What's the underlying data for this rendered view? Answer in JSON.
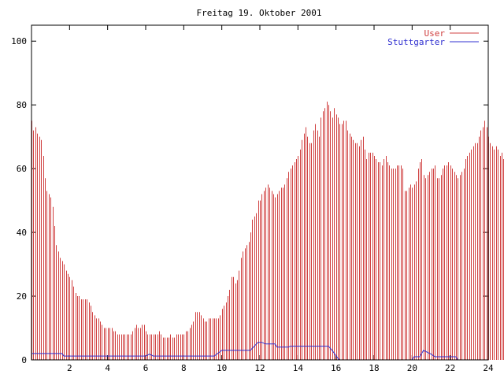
{
  "chart_data": {
    "type": "bar",
    "title": "Freitag 19. Oktober 2001",
    "xlabel": "",
    "ylabel": "",
    "xlim": [
      0,
      24
    ],
    "ylim": [
      0,
      105
    ],
    "x_ticks": [
      2,
      4,
      6,
      8,
      10,
      12,
      14,
      16,
      18,
      20,
      22,
      24
    ],
    "y_ticks": [
      0,
      20,
      40,
      60,
      80,
      100
    ],
    "legend_position": "top-right",
    "grid": false,
    "sample_step_hours": 0.1,
    "series": [
      {
        "name": "User",
        "style": "impulses",
        "color": "#d04040",
        "x_start": 0.0,
        "x_step": 0.1,
        "values": [
          75,
          72,
          73,
          71,
          70,
          69,
          64,
          57,
          53,
          52,
          51,
          48,
          42,
          36,
          34,
          32,
          31,
          30,
          28,
          27,
          26,
          25,
          23,
          21,
          20,
          20,
          19,
          19,
          19,
          19,
          18,
          17,
          15,
          14,
          13,
          13,
          12,
          11,
          10,
          10,
          10,
          10,
          10,
          9,
          9,
          8,
          8,
          8,
          8,
          8,
          8,
          8,
          8,
          9,
          10,
          11,
          10,
          10,
          11,
          11,
          9,
          8,
          8,
          8,
          8,
          8,
          8,
          9,
          8,
          7,
          7,
          7,
          7,
          8,
          7,
          7,
          8,
          8,
          8,
          8,
          8,
          9,
          9,
          10,
          11,
          12,
          15,
          15,
          15,
          14,
          13,
          12,
          12,
          13,
          13,
          13,
          13,
          13,
          13,
          14,
          16,
          17,
          18,
          20,
          22,
          26,
          26,
          24,
          25,
          28,
          32,
          34,
          35,
          36,
          37,
          40,
          44,
          45,
          46,
          50,
          50,
          52,
          53,
          54,
          55,
          54,
          53,
          52,
          51,
          52,
          53,
          54,
          54,
          55,
          57,
          59,
          60,
          61,
          62,
          63,
          64,
          66,
          69,
          71,
          73,
          70,
          68,
          68,
          72,
          74,
          72,
          70,
          76,
          78,
          79,
          81,
          80,
          78,
          76,
          79,
          77,
          76,
          74,
          74,
          75,
          75,
          72,
          71,
          70,
          69,
          68,
          68,
          67,
          69,
          70,
          66,
          63,
          65,
          65,
          65,
          64,
          63,
          62,
          62,
          61,
          63,
          64,
          62,
          61,
          60,
          60,
          60,
          61,
          61,
          61,
          60,
          53,
          53,
          54,
          55,
          54,
          55,
          56,
          60,
          62,
          63,
          58,
          57,
          58,
          59,
          60,
          60,
          61,
          57,
          57,
          58,
          60,
          61,
          61,
          62,
          61,
          60,
          59,
          58,
          57,
          58,
          59,
          60,
          63,
          64,
          65,
          66,
          67,
          68,
          68,
          70,
          72,
          73,
          75,
          73,
          70,
          68,
          67,
          66,
          67,
          66,
          64,
          65,
          63,
          65,
          67,
          68,
          69,
          70,
          66,
          68,
          69,
          70,
          66,
          66
        ],
        "hours_series_note": "x axis in hours of day"
      },
      {
        "name": "Stuttgarter",
        "style": "lines",
        "color": "#3030d0",
        "points": [
          [
            0,
            2
          ],
          [
            1.6,
            2
          ],
          [
            1.7,
            1.2
          ],
          [
            6,
            1.2
          ],
          [
            6.2,
            1.8
          ],
          [
            6.4,
            1.2
          ],
          [
            9.6,
            1.2
          ],
          [
            10,
            3
          ],
          [
            11.5,
            3
          ],
          [
            11.9,
            5.5
          ],
          [
            12.1,
            5.5
          ],
          [
            12.3,
            5
          ],
          [
            12.8,
            5
          ],
          [
            12.9,
            4
          ],
          [
            13.5,
            4
          ],
          [
            13.6,
            4.3
          ],
          [
            15.6,
            4.3
          ],
          [
            15.8,
            3
          ],
          [
            16.1,
            0.5
          ],
          [
            16.2,
            0
          ],
          [
            20,
            0
          ],
          [
            20.1,
            1
          ],
          [
            20.4,
            1
          ],
          [
            20.6,
            3
          ],
          [
            21,
            1.8
          ],
          [
            21.2,
            1
          ],
          [
            22.3,
            1
          ],
          [
            22.4,
            0
          ],
          [
            24,
            0
          ]
        ]
      }
    ]
  }
}
